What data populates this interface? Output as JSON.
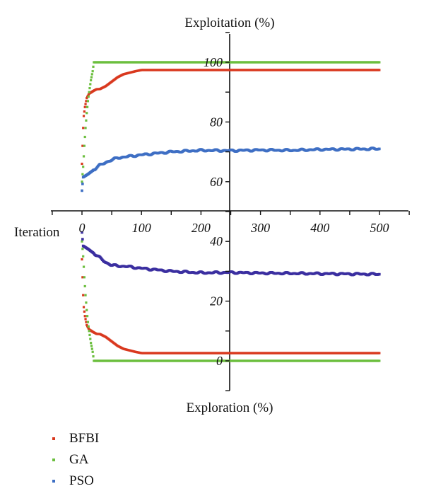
{
  "chart_data": {
    "type": "line",
    "top_axis_label": "Exploitation (%)",
    "bottom_axis_label": "Exploration (%)",
    "xlabel": "Iteration",
    "xlim": [
      0,
      500
    ],
    "ylim": [
      -10,
      110
    ],
    "x_ticks": [
      "0",
      "100",
      "200",
      "300",
      "400",
      "500"
    ],
    "x_tick_values": [
      0,
      100,
      200,
      300,
      400,
      500
    ],
    "y_ticks": [
      "0",
      "20",
      "40",
      "60",
      "80",
      "100"
    ],
    "y_tick_values": [
      0,
      20,
      40,
      60,
      80,
      100
    ],
    "series": [
      {
        "name": "BFBI",
        "color": "#d9381e",
        "exploitation": [
          [
            0,
            66
          ],
          [
            1,
            72
          ],
          [
            2,
            78
          ],
          [
            3,
            82
          ],
          [
            5,
            85
          ],
          [
            8,
            88
          ],
          [
            12,
            89.5
          ],
          [
            20,
            90.5
          ],
          [
            25,
            91
          ],
          [
            30,
            91
          ],
          [
            40,
            92
          ],
          [
            50,
            93.5
          ],
          [
            60,
            95
          ],
          [
            70,
            96
          ],
          [
            80,
            96.5
          ],
          [
            90,
            97
          ],
          [
            100,
            97.4
          ],
          [
            500,
            97.4
          ]
        ],
        "exploration": [
          [
            0,
            34
          ],
          [
            1,
            28
          ],
          [
            2,
            22
          ],
          [
            3,
            18
          ],
          [
            5,
            15
          ],
          [
            8,
            12
          ],
          [
            12,
            10.5
          ],
          [
            20,
            9.5
          ],
          [
            25,
            9
          ],
          [
            30,
            9
          ],
          [
            40,
            8
          ],
          [
            50,
            6.5
          ],
          [
            60,
            5
          ],
          [
            70,
            4
          ],
          [
            80,
            3.5
          ],
          [
            90,
            3
          ],
          [
            100,
            2.6
          ],
          [
            500,
            2.6
          ]
        ]
      },
      {
        "name": "GA",
        "color": "#6cbf3f",
        "exploitation": [
          [
            0,
            60
          ],
          [
            2,
            65
          ],
          [
            4,
            72
          ],
          [
            6,
            78
          ],
          [
            8,
            83
          ],
          [
            10,
            87
          ],
          [
            12,
            90
          ],
          [
            15,
            94
          ],
          [
            18,
            97
          ],
          [
            20,
            100
          ],
          [
            500,
            100
          ]
        ],
        "exploration": [
          [
            0,
            40
          ],
          [
            2,
            35
          ],
          [
            4,
            28
          ],
          [
            6,
            22
          ],
          [
            8,
            17
          ],
          [
            10,
            13
          ],
          [
            12,
            10
          ],
          [
            15,
            6
          ],
          [
            18,
            3
          ],
          [
            20,
            0
          ],
          [
            500,
            0
          ]
        ]
      },
      {
        "name": "PSO",
        "color": "#3e6fc4",
        "exploitation": [
          [
            0,
            57
          ],
          [
            2,
            61.5
          ],
          [
            10,
            62.5
          ],
          [
            20,
            64
          ],
          [
            30,
            65.5
          ],
          [
            40,
            66.5
          ],
          [
            60,
            68
          ],
          [
            80,
            68.5
          ],
          [
            100,
            69
          ],
          [
            150,
            70
          ],
          [
            200,
            70.5
          ],
          [
            250,
            70.4
          ],
          [
            300,
            70.6
          ],
          [
            350,
            70.5
          ],
          [
            400,
            70.8
          ],
          [
            450,
            70.9
          ],
          [
            500,
            71
          ]
        ],
        "exploration": [
          [
            0,
            43
          ],
          [
            2,
            38.5
          ],
          [
            10,
            37.5
          ],
          [
            20,
            36
          ],
          [
            30,
            34.5
          ],
          [
            40,
            33
          ],
          [
            50,
            32
          ],
          [
            80,
            31.5
          ],
          [
            100,
            31
          ],
          [
            150,
            30
          ],
          [
            200,
            29.5
          ],
          [
            250,
            29.6
          ],
          [
            300,
            29.4
          ],
          [
            350,
            29.3
          ],
          [
            400,
            29.2
          ],
          [
            450,
            29.1
          ],
          [
            500,
            29
          ],
          [
            500,
            29
          ]
        ],
        "exploration_color": "#3b2fa0"
      }
    ]
  }
}
